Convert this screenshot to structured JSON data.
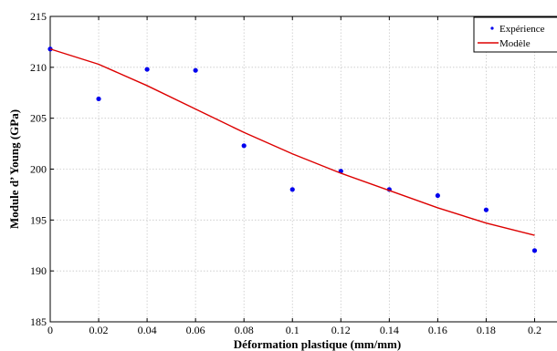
{
  "chart_data": {
    "type": "scatter",
    "title": "",
    "xlabel": "Déformation plastique (mm/mm)",
    "ylabel": "Module d’ Young (GPa)",
    "xlim": [
      0,
      0.21
    ],
    "ylim": [
      185,
      215
    ],
    "xticks": [
      0,
      0.02,
      0.04,
      0.06,
      0.08,
      0.1,
      0.12,
      0.14,
      0.16,
      0.18,
      0.2
    ],
    "xtick_labels": [
      "0",
      "0.02",
      "0.04",
      "0.06",
      "0.08",
      "0.1",
      "0.12",
      "0.14",
      "0.16",
      "0.18",
      "0.2"
    ],
    "yticks": [
      185,
      190,
      195,
      200,
      205,
      210,
      215
    ],
    "ytick_labels": [
      "185",
      "190",
      "195",
      "200",
      "205",
      "210",
      "215"
    ],
    "grid": true,
    "legend_position": "top-right",
    "series": [
      {
        "name": "Expérience",
        "kind": "scatter",
        "color": "#0000ee",
        "x": [
          0,
          0.02,
          0.04,
          0.06,
          0.08,
          0.1,
          0.12,
          0.14,
          0.16,
          0.18,
          0.2
        ],
        "y": [
          211.8,
          206.9,
          209.8,
          209.7,
          202.3,
          198.0,
          199.8,
          198.0,
          197.4,
          196.0,
          192.0
        ]
      },
      {
        "name": "Modèle",
        "kind": "line",
        "color": "#dd0000",
        "x": [
          0,
          0.02,
          0.04,
          0.06,
          0.08,
          0.1,
          0.12,
          0.14,
          0.16,
          0.18,
          0.2
        ],
        "y": [
          211.8,
          210.3,
          208.2,
          205.9,
          203.6,
          201.5,
          199.6,
          197.9,
          196.2,
          194.7,
          193.5
        ]
      }
    ]
  }
}
